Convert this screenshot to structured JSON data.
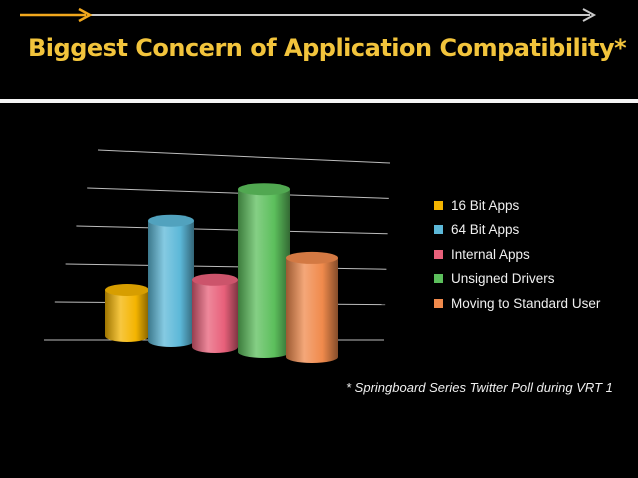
{
  "slide": {
    "title": "Biggest Concern of Application Compatibility*",
    "footnote": "* Springboard  Series Twitter Poll during VRT 1",
    "accent_color": "#f2a81d",
    "rule_color": "#c8c8c8"
  },
  "chart_data": {
    "type": "bar",
    "style": "3d-cylinder",
    "categories": [
      "16 Bit Apps",
      "64 Bit Apps",
      "Internal Apps",
      "Unsigned Drivers",
      "Moving to Standard User"
    ],
    "values": [
      1.3,
      3.4,
      1.9,
      4.6,
      2.8
    ],
    "colors": [
      "#f4b400",
      "#5cb8d8",
      "#e8607a",
      "#5cbf5c",
      "#f08a4c"
    ],
    "ylim": [
      0,
      5
    ],
    "grid": true,
    "legend": "right",
    "axis_labels_shown": false
  }
}
